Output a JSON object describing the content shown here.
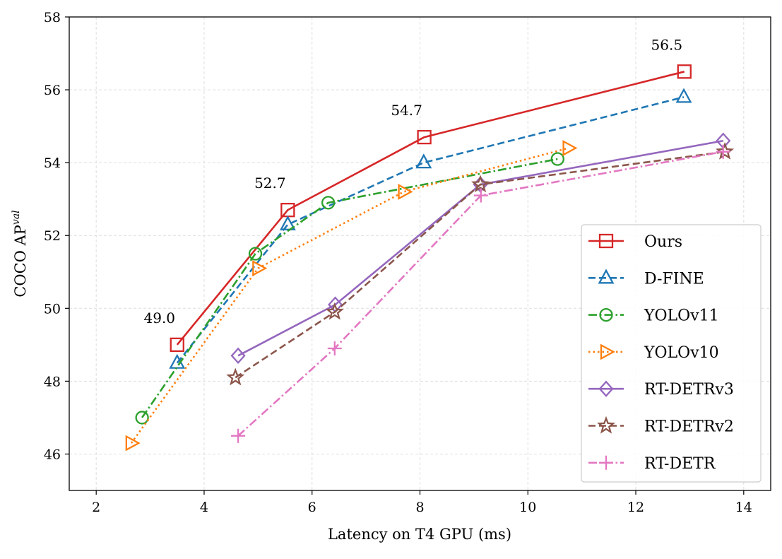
{
  "chart_data": {
    "type": "line",
    "xlabel": "Latency on T4 GPU (ms)",
    "ylabel_main": "COCO AP",
    "ylabel_sup": "val",
    "xlim": [
      1.5,
      14.5
    ],
    "ylim": [
      45,
      58
    ],
    "xticks": [
      2,
      4,
      6,
      8,
      10,
      12,
      14
    ],
    "yticks": [
      46,
      48,
      50,
      52,
      54,
      56,
      58
    ],
    "grid": true,
    "legend_position": "lower-right",
    "annotations": [
      {
        "text": "49.0",
        "x": 3.5,
        "y": 49.0
      },
      {
        "text": "52.7",
        "x": 5.55,
        "y": 52.7
      },
      {
        "text": "54.7",
        "x": 8.08,
        "y": 54.7
      },
      {
        "text": "56.5",
        "x": 12.9,
        "y": 56.5
      }
    ],
    "series": [
      {
        "name": "Ours",
        "color": "#d62728",
        "dash": "solid",
        "marker": "square",
        "x": [
          3.5,
          5.55,
          8.08,
          12.9
        ],
        "y": [
          49.0,
          52.7,
          54.7,
          56.5
        ]
      },
      {
        "name": "D-FINE",
        "color": "#1f77b4",
        "dash": "dashed",
        "marker": "triangle-up",
        "x": [
          3.5,
          5.55,
          8.07,
          12.89
        ],
        "y": [
          48.5,
          52.3,
          54.0,
          55.8
        ]
      },
      {
        "name": "YOLOv11",
        "color": "#2ca02c",
        "dash": "dashdot",
        "marker": "circle",
        "x": [
          2.85,
          4.95,
          6.3,
          10.55
        ],
        "y": [
          47.0,
          51.5,
          52.9,
          54.1
        ]
      },
      {
        "name": "YOLOv10",
        "color": "#ff7f0e",
        "dash": "dotted",
        "marker": "triangle-right",
        "x": [
          2.65,
          5.0,
          7.7,
          10.75
        ],
        "y": [
          46.3,
          51.1,
          53.2,
          54.4
        ]
      },
      {
        "name": "RT-DETRv3",
        "color": "#9467bd",
        "dash": "solid",
        "marker": "diamond",
        "x": [
          4.63,
          6.43,
          9.12,
          13.62
        ],
        "y": [
          48.7,
          50.1,
          53.4,
          54.6
        ]
      },
      {
        "name": "RT-DETRv2",
        "color": "#8c564b",
        "dash": "dashed",
        "marker": "star",
        "x": [
          4.58,
          6.42,
          9.12,
          13.65
        ],
        "y": [
          48.1,
          49.9,
          53.4,
          54.3
        ]
      },
      {
        "name": "RT-DETR",
        "color": "#e377c2",
        "dash": "dashdot",
        "marker": "plus",
        "x": [
          4.63,
          6.42,
          9.13,
          13.62
        ],
        "y": [
          46.5,
          48.9,
          53.1,
          54.3
        ]
      }
    ]
  }
}
